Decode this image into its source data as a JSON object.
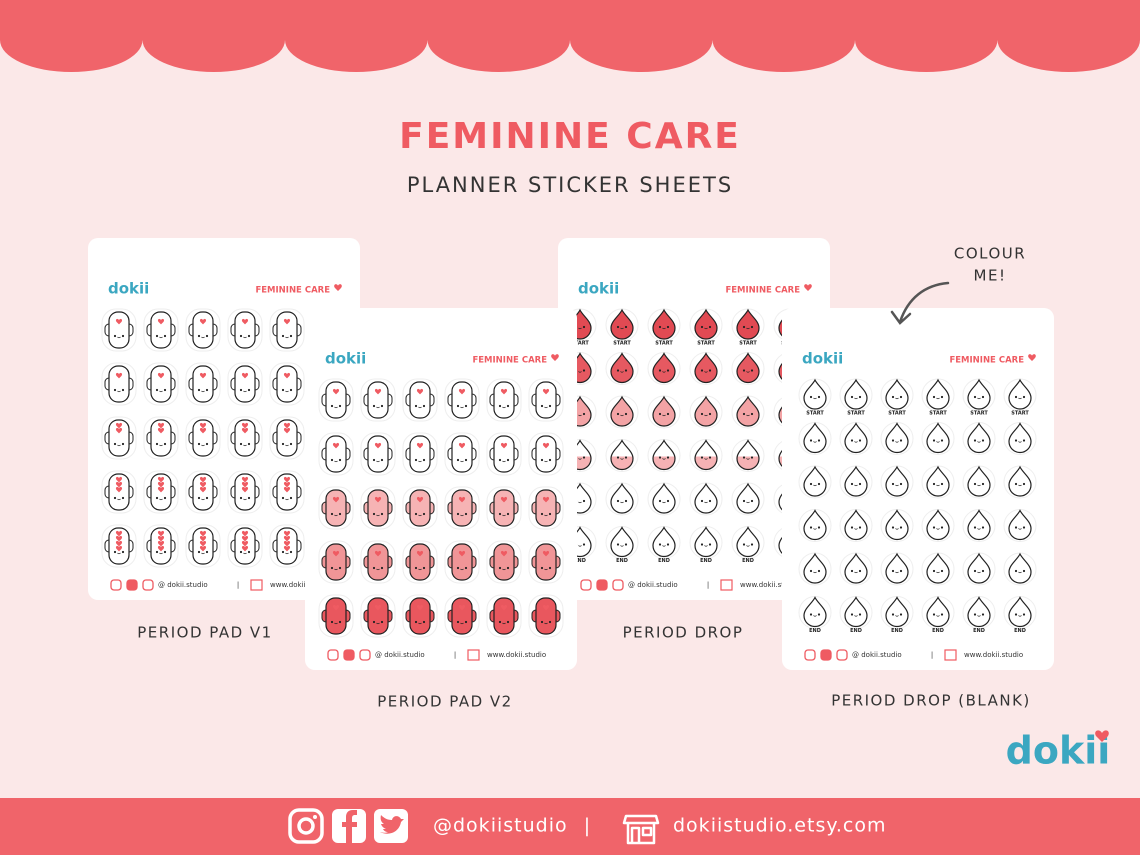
{
  "header": {
    "title": "FEMININE CARE",
    "subtitle": "PLANNER STICKER SHEETS"
  },
  "sheets": [
    {
      "brand": "dokii",
      "heading": "FEMININE CARE",
      "caption": "PERIOD PAD V1",
      "handle": "@ dokii.studio",
      "separator": "|",
      "website": "www.dokii.studio"
    },
    {
      "brand": "dokii",
      "heading": "FEMININE CARE",
      "caption": "PERIOD PAD V2",
      "handle": "@ dokii.studio",
      "separator": "|",
      "website": "www.dokii.studio"
    },
    {
      "brand": "dokii",
      "heading": "FEMININE CARE",
      "caption": "PERIOD DROP",
      "start_label": "START",
      "end_label": "END",
      "handle": "@ dokii.studio",
      "separator": "|",
      "website": "www.dokii.studio"
    },
    {
      "brand": "dokii",
      "heading": "FEMININE CARE",
      "caption": "PERIOD DROP (BLANK)",
      "start_label": "START",
      "end_label": "END",
      "handle": "@ dokii.studio",
      "separator": "|",
      "website": "www.dokii.studio"
    }
  ],
  "annotation": [
    "COLOUR",
    "ME!"
  ],
  "logo": "dokii",
  "footer": {
    "handle": "@dokiistudio",
    "separator": "|",
    "shop": "dokiistudio.etsy.com"
  }
}
